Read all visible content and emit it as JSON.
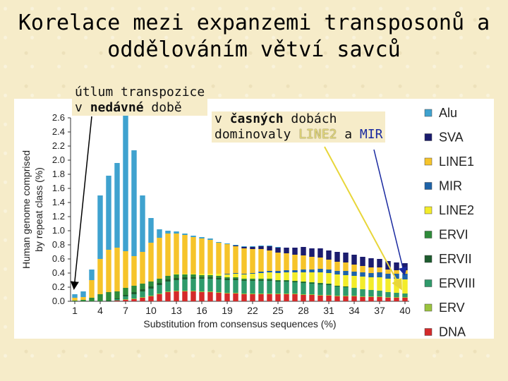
{
  "title": {
    "line1": "Korelace mezi expanzemi transposonů a",
    "line2": "oddělováním větví savců"
  },
  "annotations": {
    "recent_line1": "útlum transpozice",
    "recent_prefix": "v ",
    "recent_bold": "nedávné",
    "recent_suffix": " době",
    "early_prefix": "v ",
    "early_bold": "časných",
    "early_suffix": " dobách",
    "early_line2_prefix": "dominovaly ",
    "early_line2": "LINE2",
    "early_and": " a ",
    "early_mir": "MIR"
  },
  "chart_data": {
    "type": "bar",
    "stacked": true,
    "xlabel": "Substitution from consensus sequences (%)",
    "ylabel": "Human genome comprised by repeat class (%)",
    "ylim": [
      0,
      2.6
    ],
    "yticks": [
      "0.0",
      "0.2",
      "0.4",
      "0.6",
      "0.8",
      "1.0",
      "1.2",
      "1.4",
      "1.6",
      "1.8",
      "2.0",
      "2.2",
      "2.4",
      "2.6"
    ],
    "xticks": [
      "1",
      "4",
      "7",
      "10",
      "13",
      "16",
      "19",
      "22",
      "25",
      "28",
      "31",
      "34",
      "37",
      "40"
    ],
    "categories": [
      "1",
      "2",
      "3",
      "4",
      "5",
      "6",
      "7",
      "8",
      "9",
      "10",
      "11",
      "12",
      "13",
      "14",
      "15",
      "16",
      "17",
      "18",
      "19",
      "20",
      "21",
      "22",
      "23",
      "24",
      "25",
      "26",
      "27",
      "28",
      "29",
      "30",
      "31",
      "32",
      "33",
      "34",
      "35",
      "36",
      "37",
      "38",
      "39",
      "40"
    ],
    "legend_position": "right",
    "series": [
      {
        "name": "DNA",
        "color": "#d42a2a",
        "values": [
          0,
          0,
          0,
          0,
          0,
          0.01,
          0.02,
          0.03,
          0.05,
          0.07,
          0.1,
          0.13,
          0.14,
          0.14,
          0.14,
          0.13,
          0.13,
          0.12,
          0.11,
          0.11,
          0.1,
          0.1,
          0.1,
          0.1,
          0.1,
          0.1,
          0.1,
          0.09,
          0.09,
          0.08,
          0.08,
          0.07,
          0.07,
          0.07,
          0.06,
          0.06,
          0.06,
          0.05,
          0.05,
          0.05
        ]
      },
      {
        "name": "ERV",
        "color": "#9bc43e",
        "values": [
          0,
          0,
          0,
          0,
          0,
          0,
          0.01,
          0.01,
          0.01,
          0.01,
          0.01,
          0.01,
          0.01,
          0.01,
          0.01,
          0.01,
          0.01,
          0.01,
          0.01,
          0.01,
          0.01,
          0.01,
          0.01,
          0.01,
          0.01,
          0.01,
          0.01,
          0.01,
          0.01,
          0.01,
          0.01,
          0.01,
          0.01,
          0.01,
          0.01,
          0.01,
          0.01,
          0.01,
          0.01,
          0.01
        ]
      },
      {
        "name": "ERVIII",
        "color": "#2f9a6a",
        "values": [
          0,
          0,
          0,
          0,
          0,
          0.02,
          0.04,
          0.06,
          0.08,
          0.1,
          0.12,
          0.14,
          0.15,
          0.16,
          0.17,
          0.18,
          0.18,
          0.18,
          0.18,
          0.18,
          0.18,
          0.18,
          0.18,
          0.18,
          0.17,
          0.17,
          0.16,
          0.16,
          0.15,
          0.15,
          0.14,
          0.13,
          0.12,
          0.11,
          0.1,
          0.09,
          0.08,
          0.07,
          0.06,
          0.05
        ]
      },
      {
        "name": "ERVII",
        "color": "#1d5c2e",
        "values": [
          0,
          0,
          0,
          0,
          0.01,
          0.01,
          0.02,
          0.03,
          0.03,
          0.03,
          0.03,
          0.03,
          0.03,
          0.03,
          0.02,
          0.02,
          0.02,
          0.02,
          0.02,
          0.02,
          0.01,
          0.01,
          0.01,
          0.01,
          0.01,
          0.01,
          0.01,
          0.01,
          0.01,
          0.01,
          0.01,
          0.01,
          0.01,
          0,
          0,
          0,
          0,
          0,
          0,
          0
        ]
      },
      {
        "name": "ERVI",
        "color": "#2e8b3a",
        "values": [
          0.01,
          0.02,
          0.05,
          0.1,
          0.12,
          0.1,
          0.1,
          0.09,
          0.08,
          0.07,
          0.06,
          0.05,
          0.05,
          0.04,
          0.04,
          0.03,
          0.03,
          0.03,
          0.02,
          0.02,
          0.02,
          0.02,
          0.02,
          0.02,
          0.01,
          0.01,
          0.01,
          0.01,
          0.01,
          0.01,
          0.01,
          0,
          0,
          0,
          0,
          0,
          0,
          0,
          0,
          0
        ]
      },
      {
        "name": "LINE2",
        "color": "#f3ec2a",
        "values": [
          0,
          0,
          0,
          0,
          0,
          0,
          0,
          0,
          0,
          0,
          0,
          0,
          0.01,
          0.01,
          0.01,
          0.02,
          0.02,
          0.03,
          0.04,
          0.05,
          0.06,
          0.07,
          0.08,
          0.09,
          0.1,
          0.11,
          0.12,
          0.13,
          0.14,
          0.15,
          0.15,
          0.16,
          0.16,
          0.17,
          0.18,
          0.18,
          0.19,
          0.19,
          0.2,
          0.2
        ]
      },
      {
        "name": "MIR",
        "color": "#1e63a8",
        "values": [
          0,
          0,
          0,
          0,
          0,
          0,
          0,
          0,
          0,
          0,
          0,
          0,
          0,
          0,
          0,
          0,
          0,
          0,
          0.01,
          0.01,
          0.01,
          0.01,
          0.02,
          0.02,
          0.03,
          0.03,
          0.03,
          0.04,
          0.04,
          0.05,
          0.05,
          0.05,
          0.06,
          0.06,
          0.06,
          0.06,
          0.07,
          0.07,
          0.07,
          0.08
        ]
      },
      {
        "name": "LINE1",
        "color": "#f6c42a",
        "values": [
          0.04,
          0.04,
          0.25,
          0.5,
          0.6,
          0.62,
          0.52,
          0.42,
          0.45,
          0.55,
          0.58,
          0.6,
          0.57,
          0.55,
          0.52,
          0.5,
          0.48,
          0.44,
          0.42,
          0.38,
          0.36,
          0.34,
          0.32,
          0.29,
          0.26,
          0.24,
          0.22,
          0.2,
          0.18,
          0.16,
          0.14,
          0.13,
          0.12,
          0.1,
          0.09,
          0.08,
          0.07,
          0.06,
          0.05,
          0.05
        ]
      },
      {
        "name": "SVA",
        "color": "#1b1c6e",
        "values": [
          0,
          0,
          0,
          0,
          0,
          0,
          0,
          0,
          0,
          0,
          0,
          0,
          0,
          0,
          0,
          0,
          0,
          0,
          0,
          0.01,
          0.02,
          0.03,
          0.04,
          0.06,
          0.07,
          0.08,
          0.1,
          0.12,
          0.12,
          0.13,
          0.13,
          0.14,
          0.14,
          0.14,
          0.13,
          0.13,
          0.12,
          0.12,
          0.11,
          0.1
        ]
      },
      {
        "name": "Alu",
        "color": "#3fa2cf",
        "values": [
          0.05,
          0.08,
          0.15,
          0.9,
          1.05,
          1.2,
          1.95,
          1.5,
          0.8,
          0.35,
          0.12,
          0.04,
          0.03,
          0.02,
          0.02,
          0.02,
          0.02,
          0.01,
          0.01,
          0.01,
          0.01,
          0.01,
          0.01,
          0.01,
          0.01,
          0,
          0,
          0,
          0,
          0,
          0,
          0,
          0,
          0,
          0,
          0,
          0,
          0,
          0,
          0
        ]
      }
    ],
    "legend_order": [
      "Alu",
      "SVA",
      "LINE1",
      "MIR",
      "LINE2",
      "ERVI",
      "ERVII",
      "ERVIII",
      "ERV",
      "DNA"
    ]
  }
}
